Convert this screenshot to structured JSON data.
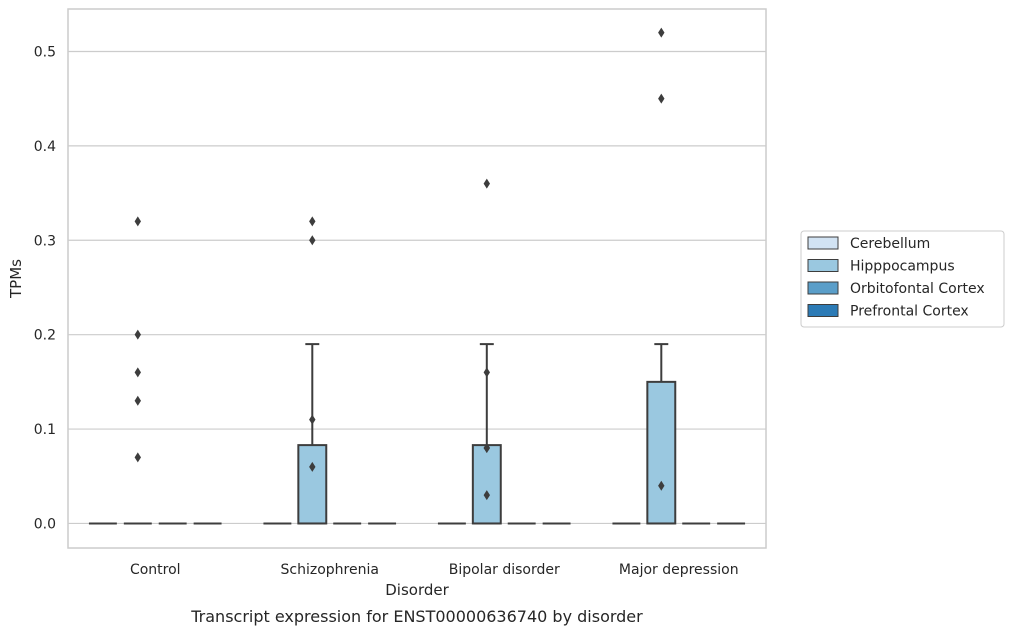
{
  "chart_data": {
    "type": "box",
    "xlabel": "Disorder",
    "ylabel": "TPMs",
    "caption": "Transcript expression for ENST00000636740 by disorder",
    "categories": [
      "Control",
      "Schizophrenia",
      "Bipolar disorder",
      "Major depression"
    ],
    "ylim": [
      -0.026,
      0.545
    ],
    "yticks": [
      0.0,
      0.1,
      0.2,
      0.3,
      0.4,
      0.5
    ],
    "ytick_labels": [
      "0.0",
      "0.1",
      "0.2",
      "0.3",
      "0.4",
      "0.5"
    ],
    "grid": true,
    "legend_position": "right",
    "series": [
      {
        "name": "Cerebellum",
        "color": "#d2e3f3",
        "boxes": [
          {
            "q1": 0,
            "median": 0,
            "q3": 0,
            "whisker_low": 0,
            "whisker_high": 0,
            "fliers": []
          },
          {
            "q1": 0,
            "median": 0,
            "q3": 0,
            "whisker_low": 0,
            "whisker_high": 0,
            "fliers": []
          },
          {
            "q1": 0,
            "median": 0,
            "q3": 0,
            "whisker_low": 0,
            "whisker_high": 0,
            "fliers": []
          },
          {
            "q1": 0,
            "median": 0,
            "q3": 0,
            "whisker_low": 0,
            "whisker_high": 0,
            "fliers": []
          }
        ]
      },
      {
        "name": "Hipppocampus",
        "color": "#9ac8e0",
        "boxes": [
          {
            "q1": 0,
            "median": 0,
            "q3": 0,
            "whisker_low": 0,
            "whisker_high": 0,
            "fliers": [
              0.32,
              0.2,
              0.16,
              0.07,
              0.13
            ]
          },
          {
            "q1": 0,
            "median": 0,
            "q3": 0.083,
            "whisker_low": 0,
            "whisker_high": 0.19,
            "fliers": [
              0.32,
              0.3,
              0.11,
              0.06
            ]
          },
          {
            "q1": 0,
            "median": 0,
            "q3": 0.083,
            "whisker_low": 0,
            "whisker_high": 0.19,
            "fliers": [
              0.36,
              0.16,
              0.08,
              0.08,
              0.03
            ]
          },
          {
            "q1": 0,
            "median": 0,
            "q3": 0.15,
            "whisker_low": 0,
            "whisker_high": 0.19,
            "fliers": [
              0.52,
              0.45,
              0.04
            ]
          }
        ]
      },
      {
        "name": "Orbitofontal Cortex",
        "color": "#5a9ec9",
        "boxes": [
          {
            "q1": 0,
            "median": 0,
            "q3": 0,
            "whisker_low": 0,
            "whisker_high": 0,
            "fliers": []
          },
          {
            "q1": 0,
            "median": 0,
            "q3": 0,
            "whisker_low": 0,
            "whisker_high": 0,
            "fliers": []
          },
          {
            "q1": 0,
            "median": 0,
            "q3": 0,
            "whisker_low": 0,
            "whisker_high": 0,
            "fliers": []
          },
          {
            "q1": 0,
            "median": 0,
            "q3": 0,
            "whisker_low": 0,
            "whisker_high": 0,
            "fliers": []
          }
        ]
      },
      {
        "name": "Prefrontal Cortex",
        "color": "#2c7bb6",
        "boxes": [
          {
            "q1": 0,
            "median": 0,
            "q3": 0,
            "whisker_low": 0,
            "whisker_high": 0,
            "fliers": []
          },
          {
            "q1": 0,
            "median": 0,
            "q3": 0,
            "whisker_low": 0,
            "whisker_high": 0,
            "fliers": []
          },
          {
            "q1": 0,
            "median": 0,
            "q3": 0,
            "whisker_low": 0,
            "whisker_high": 0,
            "fliers": []
          },
          {
            "q1": 0,
            "median": 0,
            "q3": 0,
            "whisker_low": 0,
            "whisker_high": 0,
            "fliers": []
          }
        ]
      }
    ]
  }
}
